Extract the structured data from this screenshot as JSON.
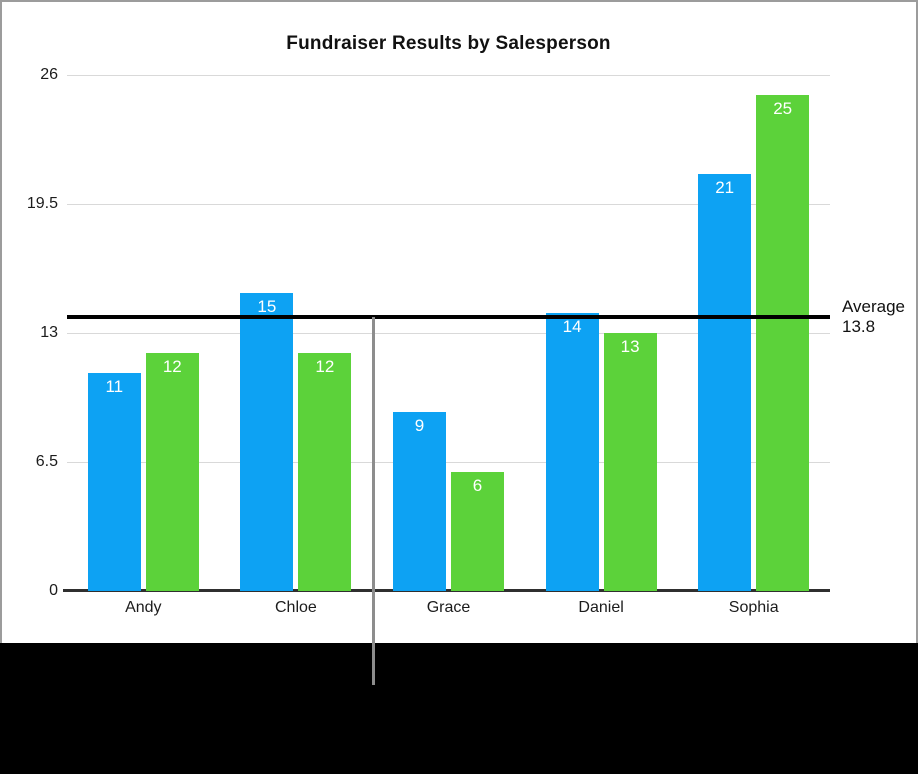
{
  "title": "Fundraiser Results by Salesperson",
  "chart_data": {
    "type": "bar",
    "title": "Fundraiser Results by Salesperson",
    "categories": [
      "Andy",
      "Chloe",
      "Grace",
      "Daniel",
      "Sophia"
    ],
    "series": [
      {
        "name": "series-1-blue",
        "color": "#0da2f3",
        "values": [
          11,
          15,
          9,
          14,
          21
        ]
      },
      {
        "name": "series-2-green",
        "color": "#5cd23a",
        "values": [
          12,
          12,
          6,
          13,
          25
        ]
      }
    ],
    "ylim": [
      0,
      26
    ],
    "yticks": [
      {
        "value": 0,
        "label": "0"
      },
      {
        "value": 6.5,
        "label": "6.5"
      },
      {
        "value": 13,
        "label": "13"
      },
      {
        "value": 19.5,
        "label": "19.5"
      },
      {
        "value": 26,
        "label": "26"
      }
    ],
    "grid": true,
    "legend_position": "none",
    "value_labels_shown": true,
    "average_line": {
      "value": 13.8,
      "label": "Average",
      "value_text": "13.8"
    }
  },
  "colors": {
    "bar_blue": "#0da2f3",
    "bar_green": "#5cd23a",
    "average_line": "#000000",
    "gridline": "#d9d9d9",
    "axis_line": "#2f2f2f",
    "panel_border": "#9c9c9c",
    "footer_background": "#000000",
    "divider_line": "#8d8d8d"
  }
}
